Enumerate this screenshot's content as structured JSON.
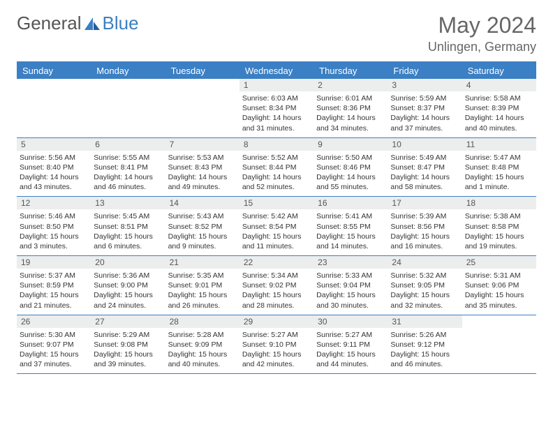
{
  "brand": {
    "part1": "General",
    "part2": "Blue"
  },
  "title": "May 2024",
  "location": "Unlingen, Germany",
  "colors": {
    "accent": "#3b7fc4",
    "header_bg": "#3b7fc4",
    "date_bg": "#eceded",
    "text": "#333333",
    "muted": "#666666",
    "background": "#ffffff"
  },
  "day_names": [
    "Sunday",
    "Monday",
    "Tuesday",
    "Wednesday",
    "Thursday",
    "Friday",
    "Saturday"
  ],
  "weeks": [
    [
      {
        "n": "",
        "sr": "",
        "ss": "",
        "dl": ""
      },
      {
        "n": "",
        "sr": "",
        "ss": "",
        "dl": ""
      },
      {
        "n": "",
        "sr": "",
        "ss": "",
        "dl": ""
      },
      {
        "n": "1",
        "sr": "Sunrise: 6:03 AM",
        "ss": "Sunset: 8:34 PM",
        "dl": "Daylight: 14 hours and 31 minutes."
      },
      {
        "n": "2",
        "sr": "Sunrise: 6:01 AM",
        "ss": "Sunset: 8:36 PM",
        "dl": "Daylight: 14 hours and 34 minutes."
      },
      {
        "n": "3",
        "sr": "Sunrise: 5:59 AM",
        "ss": "Sunset: 8:37 PM",
        "dl": "Daylight: 14 hours and 37 minutes."
      },
      {
        "n": "4",
        "sr": "Sunrise: 5:58 AM",
        "ss": "Sunset: 8:39 PM",
        "dl": "Daylight: 14 hours and 40 minutes."
      }
    ],
    [
      {
        "n": "5",
        "sr": "Sunrise: 5:56 AM",
        "ss": "Sunset: 8:40 PM",
        "dl": "Daylight: 14 hours and 43 minutes."
      },
      {
        "n": "6",
        "sr": "Sunrise: 5:55 AM",
        "ss": "Sunset: 8:41 PM",
        "dl": "Daylight: 14 hours and 46 minutes."
      },
      {
        "n": "7",
        "sr": "Sunrise: 5:53 AM",
        "ss": "Sunset: 8:43 PM",
        "dl": "Daylight: 14 hours and 49 minutes."
      },
      {
        "n": "8",
        "sr": "Sunrise: 5:52 AM",
        "ss": "Sunset: 8:44 PM",
        "dl": "Daylight: 14 hours and 52 minutes."
      },
      {
        "n": "9",
        "sr": "Sunrise: 5:50 AM",
        "ss": "Sunset: 8:46 PM",
        "dl": "Daylight: 14 hours and 55 minutes."
      },
      {
        "n": "10",
        "sr": "Sunrise: 5:49 AM",
        "ss": "Sunset: 8:47 PM",
        "dl": "Daylight: 14 hours and 58 minutes."
      },
      {
        "n": "11",
        "sr": "Sunrise: 5:47 AM",
        "ss": "Sunset: 8:48 PM",
        "dl": "Daylight: 15 hours and 1 minute."
      }
    ],
    [
      {
        "n": "12",
        "sr": "Sunrise: 5:46 AM",
        "ss": "Sunset: 8:50 PM",
        "dl": "Daylight: 15 hours and 3 minutes."
      },
      {
        "n": "13",
        "sr": "Sunrise: 5:45 AM",
        "ss": "Sunset: 8:51 PM",
        "dl": "Daylight: 15 hours and 6 minutes."
      },
      {
        "n": "14",
        "sr": "Sunrise: 5:43 AM",
        "ss": "Sunset: 8:52 PM",
        "dl": "Daylight: 15 hours and 9 minutes."
      },
      {
        "n": "15",
        "sr": "Sunrise: 5:42 AM",
        "ss": "Sunset: 8:54 PM",
        "dl": "Daylight: 15 hours and 11 minutes."
      },
      {
        "n": "16",
        "sr": "Sunrise: 5:41 AM",
        "ss": "Sunset: 8:55 PM",
        "dl": "Daylight: 15 hours and 14 minutes."
      },
      {
        "n": "17",
        "sr": "Sunrise: 5:39 AM",
        "ss": "Sunset: 8:56 PM",
        "dl": "Daylight: 15 hours and 16 minutes."
      },
      {
        "n": "18",
        "sr": "Sunrise: 5:38 AM",
        "ss": "Sunset: 8:58 PM",
        "dl": "Daylight: 15 hours and 19 minutes."
      }
    ],
    [
      {
        "n": "19",
        "sr": "Sunrise: 5:37 AM",
        "ss": "Sunset: 8:59 PM",
        "dl": "Daylight: 15 hours and 21 minutes."
      },
      {
        "n": "20",
        "sr": "Sunrise: 5:36 AM",
        "ss": "Sunset: 9:00 PM",
        "dl": "Daylight: 15 hours and 24 minutes."
      },
      {
        "n": "21",
        "sr": "Sunrise: 5:35 AM",
        "ss": "Sunset: 9:01 PM",
        "dl": "Daylight: 15 hours and 26 minutes."
      },
      {
        "n": "22",
        "sr": "Sunrise: 5:34 AM",
        "ss": "Sunset: 9:02 PM",
        "dl": "Daylight: 15 hours and 28 minutes."
      },
      {
        "n": "23",
        "sr": "Sunrise: 5:33 AM",
        "ss": "Sunset: 9:04 PM",
        "dl": "Daylight: 15 hours and 30 minutes."
      },
      {
        "n": "24",
        "sr": "Sunrise: 5:32 AM",
        "ss": "Sunset: 9:05 PM",
        "dl": "Daylight: 15 hours and 32 minutes."
      },
      {
        "n": "25",
        "sr": "Sunrise: 5:31 AM",
        "ss": "Sunset: 9:06 PM",
        "dl": "Daylight: 15 hours and 35 minutes."
      }
    ],
    [
      {
        "n": "26",
        "sr": "Sunrise: 5:30 AM",
        "ss": "Sunset: 9:07 PM",
        "dl": "Daylight: 15 hours and 37 minutes."
      },
      {
        "n": "27",
        "sr": "Sunrise: 5:29 AM",
        "ss": "Sunset: 9:08 PM",
        "dl": "Daylight: 15 hours and 39 minutes."
      },
      {
        "n": "28",
        "sr": "Sunrise: 5:28 AM",
        "ss": "Sunset: 9:09 PM",
        "dl": "Daylight: 15 hours and 40 minutes."
      },
      {
        "n": "29",
        "sr": "Sunrise: 5:27 AM",
        "ss": "Sunset: 9:10 PM",
        "dl": "Daylight: 15 hours and 42 minutes."
      },
      {
        "n": "30",
        "sr": "Sunrise: 5:27 AM",
        "ss": "Sunset: 9:11 PM",
        "dl": "Daylight: 15 hours and 44 minutes."
      },
      {
        "n": "31",
        "sr": "Sunrise: 5:26 AM",
        "ss": "Sunset: 9:12 PM",
        "dl": "Daylight: 15 hours and 46 minutes."
      },
      {
        "n": "",
        "sr": "",
        "ss": "",
        "dl": ""
      }
    ]
  ]
}
